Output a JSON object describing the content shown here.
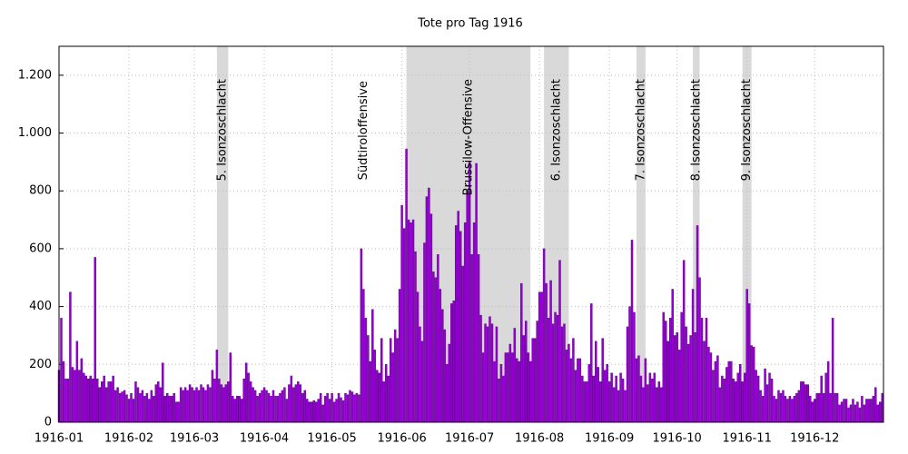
{
  "chart_data": {
    "type": "bar",
    "title": "Tote pro Tag 1916",
    "x": [
      1,
      2,
      3,
      4,
      5,
      6,
      7,
      8,
      9,
      10,
      11,
      12,
      13,
      14,
      15,
      16,
      17,
      18,
      19,
      20,
      21,
      22,
      23,
      24,
      25,
      26,
      27,
      28,
      29,
      30,
      31,
      32,
      33,
      34,
      35,
      36,
      37,
      38,
      39,
      40,
      41,
      42,
      43,
      44,
      45,
      46,
      47,
      48,
      49,
      50,
      51,
      52,
      53,
      54,
      55,
      56,
      57,
      58,
      59,
      60,
      61,
      62,
      63,
      64,
      65,
      66,
      67,
      68,
      69,
      70,
      71,
      72,
      73,
      74,
      75,
      76,
      77,
      78,
      79,
      80,
      81,
      82,
      83,
      84,
      85,
      86,
      87,
      88,
      89,
      90,
      91,
      92,
      93,
      94,
      95,
      96,
      97,
      98,
      99,
      100,
      101,
      102,
      103,
      104,
      105,
      106,
      107,
      108,
      109,
      110,
      111,
      112,
      113,
      114,
      115,
      116,
      117,
      118,
      119,
      120,
      121,
      122,
      123,
      124,
      125,
      126,
      127,
      128,
      129,
      130,
      131,
      132,
      133,
      134,
      135,
      136,
      137,
      138,
      139,
      140,
      141,
      142,
      143,
      144,
      145,
      146,
      147,
      148,
      149,
      150,
      151,
      152,
      153,
      154,
      155,
      156,
      157,
      158,
      159,
      160,
      161,
      162,
      163,
      164,
      165,
      166,
      167,
      168,
      169,
      170,
      171,
      172,
      173,
      174,
      175,
      176,
      177,
      178,
      179,
      180,
      181,
      182,
      183,
      184,
      185,
      186,
      187,
      188,
      189,
      190,
      191,
      192,
      193,
      194,
      195,
      196,
      197,
      198,
      199,
      200,
      201,
      202,
      203,
      204,
      205,
      206,
      207,
      208,
      209,
      210,
      211,
      212,
      213,
      214,
      215,
      216,
      217,
      218,
      219,
      220,
      221,
      222,
      223,
      224,
      225,
      226,
      227,
      228,
      229,
      230,
      231,
      232,
      233,
      234,
      235,
      236,
      237,
      238,
      239,
      240,
      241,
      242,
      243,
      244,
      245,
      246,
      247,
      248,
      249,
      250,
      251,
      252,
      253,
      254,
      255,
      256,
      257,
      258,
      259,
      260,
      261,
      262,
      263,
      264,
      265,
      266,
      267,
      268,
      269,
      270,
      271,
      272,
      273,
      274,
      275,
      276,
      277,
      278,
      279,
      280,
      281,
      282,
      283,
      284,
      285,
      286,
      287,
      288,
      289,
      290,
      291,
      292,
      293,
      294,
      295,
      296,
      297,
      298,
      299,
      300,
      301,
      302,
      303,
      304,
      305,
      306,
      307,
      308,
      309,
      310,
      311,
      312,
      313,
      314,
      315,
      316,
      317,
      318,
      319,
      320,
      321,
      322,
      323,
      324,
      325,
      326,
      327,
      328,
      329,
      330,
      331,
      332,
      333,
      334,
      335,
      336,
      337,
      338,
      339,
      340,
      341,
      342,
      343,
      344,
      345,
      346,
      347,
      348,
      349,
      350,
      351,
      352,
      353,
      354,
      355,
      356,
      357,
      358,
      359,
      360,
      361,
      362,
      363,
      364,
      365,
      366
    ],
    "values": [
      180,
      360,
      210,
      150,
      150,
      450,
      190,
      180,
      280,
      180,
      220,
      170,
      160,
      150,
      160,
      150,
      570,
      150,
      120,
      140,
      160,
      120,
      140,
      140,
      160,
      110,
      120,
      100,
      105,
      110,
      95,
      80,
      100,
      80,
      140,
      120,
      100,
      110,
      90,
      100,
      80,
      110,
      90,
      130,
      140,
      120,
      205,
      90,
      100,
      90,
      90,
      100,
      70,
      70,
      120,
      110,
      120,
      110,
      130,
      120,
      110,
      120,
      110,
      130,
      120,
      110,
      130,
      120,
      180,
      150,
      250,
      150,
      130,
      120,
      130,
      140,
      240,
      90,
      80,
      90,
      90,
      80,
      150,
      205,
      170,
      140,
      120,
      110,
      90,
      100,
      110,
      120,
      110,
      100,
      90,
      110,
      90,
      90,
      100,
      110,
      120,
      80,
      130,
      160,
      120,
      130,
      140,
      130,
      100,
      110,
      80,
      70,
      70,
      75,
      70,
      80,
      100,
      60,
      90,
      100,
      80,
      100,
      70,
      80,
      100,
      85,
      75,
      100,
      95,
      110,
      105,
      95,
      100,
      95,
      600,
      460,
      360,
      300,
      210,
      390,
      250,
      180,
      170,
      290,
      140,
      200,
      160,
      290,
      240,
      320,
      290,
      460,
      750,
      670,
      945,
      700,
      690,
      700,
      590,
      450,
      330,
      280,
      620,
      780,
      810,
      720,
      520,
      500,
      580,
      460,
      390,
      320,
      200,
      270,
      410,
      420,
      680,
      730,
      660,
      540,
      690,
      800,
      900,
      580,
      690,
      895,
      580,
      370,
      240,
      340,
      330,
      365,
      340,
      210,
      330,
      150,
      200,
      160,
      240,
      240,
      270,
      240,
      325,
      220,
      210,
      480,
      300,
      350,
      240,
      210,
      290,
      290,
      350,
      450,
      450,
      600,
      480,
      360,
      490,
      340,
      380,
      370,
      560,
      330,
      340,
      250,
      270,
      220,
      290,
      180,
      220,
      220,
      160,
      140,
      140,
      200,
      410,
      160,
      280,
      190,
      140,
      290,
      180,
      200,
      140,
      170,
      120,
      160,
      110,
      170,
      150,
      110,
      330,
      400,
      630,
      380,
      220,
      230,
      160,
      120,
      220,
      130,
      170,
      150,
      170,
      120,
      140,
      120,
      380,
      350,
      280,
      360,
      460,
      300,
      310,
      250,
      380,
      560,
      330,
      270,
      300,
      460,
      310,
      680,
      500,
      360,
      280,
      360,
      260,
      240,
      180,
      210,
      230,
      120,
      160,
      150,
      190,
      210,
      210,
      150,
      140,
      170,
      200,
      140,
      170,
      460,
      410,
      265,
      260,
      180,
      160,
      110,
      90,
      185,
      130,
      170,
      150,
      90,
      80,
      110,
      100,
      110,
      90,
      80,
      90,
      80,
      90,
      100,
      110,
      140,
      140,
      130,
      130,
      90,
      70,
      80,
      100,
      100,
      160,
      100,
      170,
      210,
      100,
      360,
      100,
      100,
      60,
      70,
      80,
      80,
      50,
      60,
      80,
      60,
      70,
      50,
      90,
      60,
      80,
      80,
      80,
      90,
      120,
      60,
      70,
      100
    ],
    "color": "#9400d3",
    "xlim": [
      1,
      366.5
    ],
    "xticks": [
      {
        "value": 1,
        "label": "1916-01"
      },
      {
        "value": 32,
        "label": "1916-02"
      },
      {
        "value": 61,
        "label": "1916-03"
      },
      {
        "value": 92,
        "label": "1916-04"
      },
      {
        "value": 122,
        "label": "1916-05"
      },
      {
        "value": 153,
        "label": "1916-06"
      },
      {
        "value": 183,
        "label": "1916-07"
      },
      {
        "value": 214,
        "label": "1916-08"
      },
      {
        "value": 245,
        "label": "1916-09"
      },
      {
        "value": 275,
        "label": "1916-10"
      },
      {
        "value": 306,
        "label": "1916-11"
      },
      {
        "value": 336,
        "label": "1916-12"
      }
    ],
    "ylim": [
      0,
      1300
    ],
    "yticks": [
      0,
      200,
      400,
      600,
      800,
      {
        "value": 1000,
        "label": "1.000"
      },
      {
        "value": 1200,
        "label": "1.200"
      }
    ],
    "grid": true,
    "spans": [
      {
        "label": "5. Isonzoschlacht",
        "start": 71,
        "end": 76
      },
      {
        "label": "Brussilow-Offensive",
        "start": 155,
        "end": 210
      },
      {
        "label": "6. Isonzoschlacht",
        "start": 216,
        "end": 227
      },
      {
        "label": "7. Isonzoschlacht",
        "start": 257,
        "end": 261
      },
      {
        "label": "8. Isonzoschlacht",
        "start": 282,
        "end": 285
      },
      {
        "label": "9. Isonzoschlacht",
        "start": 304,
        "end": 308
      }
    ],
    "annotations": [
      {
        "label": "Südtiroloffensive",
        "x": 136
      }
    ]
  }
}
